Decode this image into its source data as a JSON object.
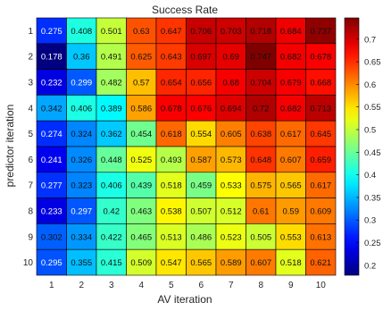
{
  "chart_data": {
    "type": "heatmap",
    "title": "Success Rate",
    "xlabel": "AV iteration",
    "ylabel": "predictor iteration",
    "x_categories": [
      "1",
      "2",
      "3",
      "4",
      "5",
      "6",
      "7",
      "8",
      "9",
      "10"
    ],
    "y_categories": [
      "1",
      "2",
      "3",
      "4",
      "5",
      "6",
      "7",
      "8",
      "9",
      "10"
    ],
    "values": [
      [
        0.275,
        0.408,
        0.501,
        0.63,
        0.647,
        0.706,
        0.703,
        0.718,
        0.684,
        0.737
      ],
      [
        0.178,
        0.36,
        0.491,
        0.625,
        0.643,
        0.697,
        0.69,
        0.747,
        0.682,
        0.678
      ],
      [
        0.232,
        0.299,
        0.482,
        0.57,
        0.654,
        0.656,
        0.68,
        0.704,
        0.679,
        0.668
      ],
      [
        0.342,
        0.406,
        0.389,
        0.586,
        0.678,
        0.676,
        0.694,
        0.72,
        0.682,
        0.713
      ],
      [
        0.274,
        0.324,
        0.362,
        0.454,
        0.618,
        0.554,
        0.605,
        0.638,
        0.617,
        0.645
      ],
      [
        0.241,
        0.326,
        0.448,
        0.525,
        0.493,
        0.587,
        0.573,
        0.648,
        0.607,
        0.659
      ],
      [
        0.277,
        0.323,
        0.406,
        0.439,
        0.518,
        0.459,
        0.533,
        0.575,
        0.565,
        0.617
      ],
      [
        0.233,
        0.297,
        0.42,
        0.463,
        0.538,
        0.507,
        0.512,
        0.61,
        0.59,
        0.609
      ],
      [
        0.302,
        0.334,
        0.422,
        0.465,
        0.513,
        0.486,
        0.523,
        0.505,
        0.553,
        0.613
      ],
      [
        0.295,
        0.355,
        0.415,
        0.509,
        0.547,
        0.565,
        0.589,
        0.607,
        0.518,
        0.621
      ]
    ],
    "labels": [
      [
        "0.275",
        "0.408",
        "0.501",
        "0.63",
        "0.647",
        "0.706",
        "0.703",
        "0.718",
        "0.684",
        "0.737"
      ],
      [
        "0.178",
        "0.36",
        "0.491",
        "0.625",
        "0.643",
        "0.697",
        "0.69",
        "0.747",
        "0.682",
        "0.678"
      ],
      [
        "0.232",
        "0.299",
        "0.482",
        "0.57",
        "0.654",
        "0.656",
        "0.68",
        "0.704",
        "0.679",
        "0.668"
      ],
      [
        "0.342",
        "0.406",
        "0.389",
        "0.586",
        "0.678",
        "0.676",
        "0.694",
        "0.72",
        "0.682",
        "0.713"
      ],
      [
        "0.274",
        "0.324",
        "0.362",
        "0.454",
        "0.618",
        "0.554",
        "0.605",
        "0.638",
        "0.617",
        "0.645"
      ],
      [
        "0.241",
        "0.326",
        "0.448",
        "0.525",
        "0.493",
        "0.587",
        "0.573",
        "0.648",
        "0.607",
        "0.659"
      ],
      [
        "0.277",
        "0.323",
        "0.406",
        "0.439",
        "0.518",
        "0.459",
        "0.533",
        "0.575",
        "0.565",
        "0.617"
      ],
      [
        "0.233",
        "0.297",
        "0.42",
        "0.463",
        "0.538",
        "0.507",
        "0.512",
        "0.61",
        "0.59",
        "0.609"
      ],
      [
        "0.302",
        "0.334",
        "0.422",
        "0.465",
        "0.513",
        "0.486",
        "0.523",
        "0.505",
        "0.553",
        "0.613"
      ],
      [
        "0.295",
        "0.355",
        "0.415",
        "0.509",
        "0.547",
        "0.565",
        "0.589",
        "0.607",
        "0.518",
        "0.621"
      ]
    ],
    "colormap": "jet",
    "color_range": [
      0.178,
      0.747
    ],
    "colorbar_ticks": [
      0.2,
      0.25,
      0.3,
      0.35,
      0.4,
      0.45,
      0.5,
      0.55,
      0.6,
      0.65,
      0.7
    ],
    "colorbar_tick_labels": [
      "0.2",
      "0.25",
      "0.3",
      "0.35",
      "0.4",
      "0.45",
      "0.5",
      "0.55",
      "0.6",
      "0.65",
      "0.7"
    ],
    "cell_border_color": "#000000",
    "light_text_below": 0.3,
    "grid": false,
    "legend": "none"
  }
}
